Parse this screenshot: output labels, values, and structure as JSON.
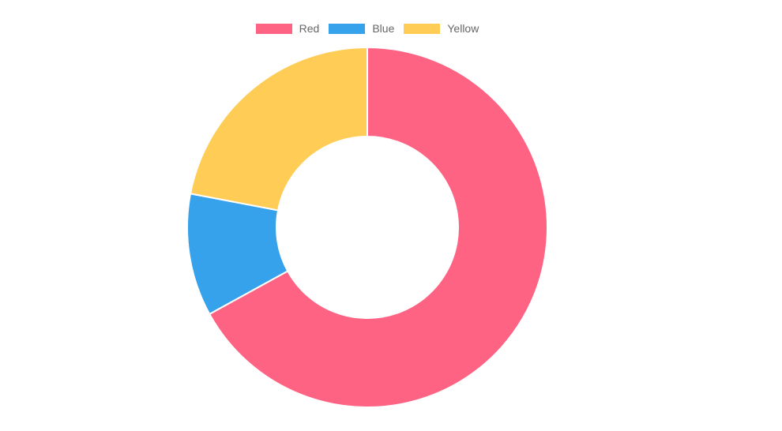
{
  "chart_data": {
    "type": "pie",
    "variant": "doughnut",
    "categories": [
      "Red",
      "Blue",
      "Yellow"
    ],
    "values": [
      67,
      11,
      22
    ],
    "colors": [
      "#FF6384",
      "#36A2EB",
      "#FFCD56"
    ],
    "legend": "top",
    "title": ""
  }
}
